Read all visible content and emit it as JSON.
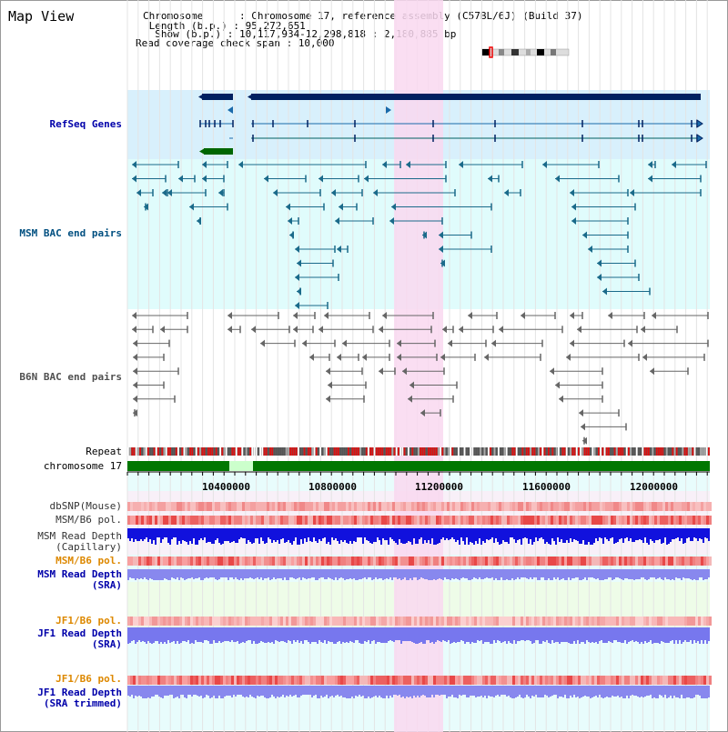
{
  "view_title": "Map View",
  "info": {
    "chromosome": "Chromosome      : Chromosome 17, reference assembly (C57BL/6J) (Build 37)",
    "length": " Length (b.p.) : 95,272,651",
    "show": "  Show (b.p.) : 10,117,934-12,298,818 : 2,180,885 bp",
    "coverage": "Read coverage check span : 10,000"
  },
  "tracks": {
    "refseq": "RefSeq Genes",
    "msm_bac": "MSM BAC end pairs",
    "b6n_bac": "B6N BAC end pairs",
    "repeat": "Repeat",
    "chromosome": "chromosome 17",
    "dbsnp": "dbSNP(Mouse)",
    "msm_b6_pol_1": "MSM/B6 pol.",
    "msm_read_depth_cap_1": "MSM Read Depth",
    "msm_read_depth_cap_2": "(Capillary)",
    "msm_b6_pol_2": "MSM/B6 pol.",
    "msm_read_depth_sra_1": "MSM Read Depth",
    "msm_read_depth_sra_2": "(SRA)",
    "jf1_b6_pol_1": "JF1/B6 pol.",
    "jf1_read_depth_1": "JF1 Read Depth",
    "jf1_read_depth_2": "(SRA)",
    "jf1_b6_pol_2": "JF1/B6 pol.",
    "jf1_read_depth_trim_1": "JF1 Read Depth",
    "jf1_read_depth_trim_2": "(SRA trimmed)"
  },
  "ruler": [
    "10400000",
    "10800000",
    "11200000",
    "11600000",
    "12000000"
  ],
  "colors": {
    "refseq_bg": "#d8f0fc",
    "msm_bg": "#e0fcfc",
    "highlight": "#f9d8f0",
    "gene_dark": "#002060",
    "chrom_green": "#007700",
    "msm_label": "#004f80",
    "b6n_label": "#505050",
    "blue_label": "#0000aa",
    "orange_label": "#dd8800"
  }
}
